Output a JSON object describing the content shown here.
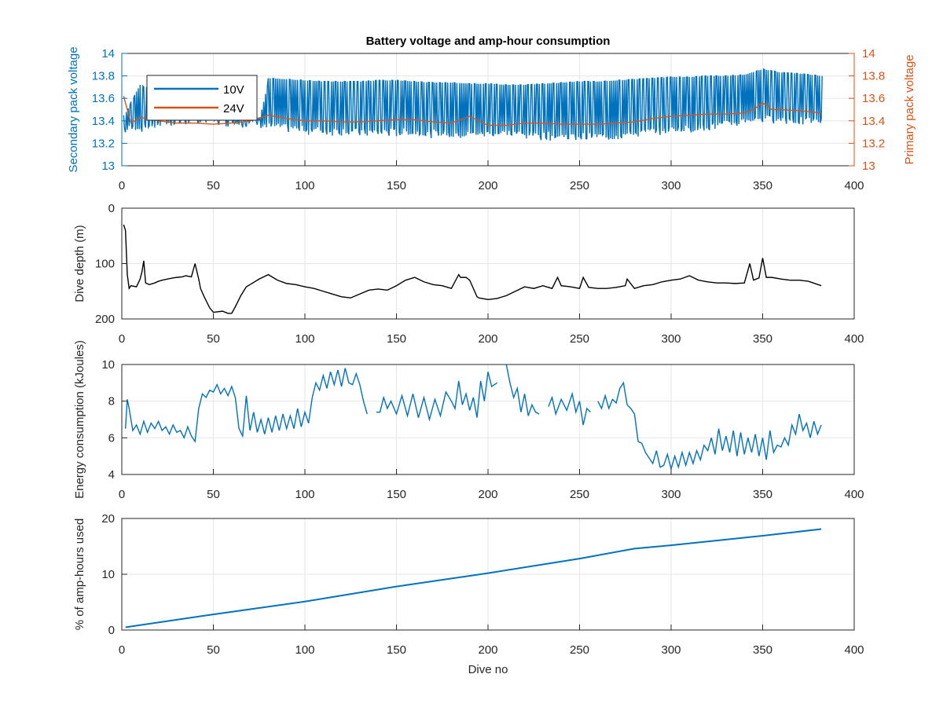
{
  "figure": {
    "title": "Battery voltage and amp-hour consumption"
  },
  "colors": {
    "blue": "#0072BD",
    "orange": "#D95319",
    "black": "#000000",
    "grid": "#e6e6e6",
    "axis": "#262626"
  },
  "chart_data": [
    {
      "type": "line",
      "title": "Battery voltage and amp-hour consumption",
      "xlabel": "",
      "ylabel": "Secondary pack voltage",
      "ylabel_right": "Primary pack voltage",
      "xlim": [
        0,
        400
      ],
      "ylim": [
        13,
        14
      ],
      "ylim_right": [
        13,
        14
      ],
      "xticks": [
        0,
        50,
        100,
        150,
        200,
        250,
        300,
        350,
        400
      ],
      "yticks": [
        13,
        13.2,
        13.4,
        13.6,
        13.8,
        14
      ],
      "yticks_right": [
        13,
        13.2,
        13.4,
        13.6,
        13.8,
        14
      ],
      "grid": true,
      "legend": "top-left",
      "series": [
        {
          "name": "10V",
          "axis": "left",
          "color": "#0072BD",
          "style": "switching",
          "x": [
            1,
            10,
            20,
            30,
            40,
            50,
            60,
            70,
            75,
            80,
            90,
            100,
            110,
            120,
            130,
            140,
            150,
            160,
            170,
            180,
            190,
            200,
            210,
            220,
            230,
            240,
            250,
            260,
            270,
            280,
            290,
            300,
            310,
            320,
            330,
            340,
            350,
            360,
            370,
            382
          ],
          "high": [
            13.45,
            13.72,
            13.62,
            13.52,
            13.5,
            13.45,
            13.44,
            13.42,
            13.43,
            13.78,
            13.77,
            13.76,
            13.75,
            13.75,
            13.75,
            13.76,
            13.76,
            13.75,
            13.74,
            13.74,
            13.73,
            13.73,
            13.72,
            13.72,
            13.73,
            13.74,
            13.75,
            13.75,
            13.76,
            13.77,
            13.78,
            13.79,
            13.79,
            13.8,
            13.8,
            13.81,
            13.86,
            13.83,
            13.82,
            13.8
          ],
          "low": [
            13.3,
            13.32,
            13.35,
            13.37,
            13.38,
            13.38,
            13.37,
            13.36,
            13.36,
            13.33,
            13.32,
            13.3,
            13.29,
            13.29,
            13.28,
            13.28,
            13.28,
            13.27,
            13.27,
            13.26,
            13.26,
            13.27,
            13.27,
            13.26,
            13.25,
            13.24,
            13.24,
            13.24,
            13.25,
            13.27,
            13.29,
            13.3,
            13.31,
            13.33,
            13.35,
            13.38,
            13.4,
            13.4,
            13.38,
            13.37
          ]
        },
        {
          "name": "24V",
          "axis": "right",
          "color": "#D95319",
          "style": "line",
          "x": [
            1,
            5,
            10,
            20,
            30,
            40,
            50,
            60,
            70,
            80,
            90,
            100,
            110,
            120,
            130,
            140,
            150,
            160,
            170,
            180,
            190,
            200,
            210,
            220,
            230,
            240,
            250,
            260,
            270,
            280,
            290,
            300,
            310,
            320,
            330,
            340,
            345,
            350,
            355,
            360,
            370,
            382
          ],
          "y": [
            13.62,
            13.38,
            13.43,
            13.4,
            13.38,
            13.38,
            13.37,
            13.38,
            13.4,
            13.45,
            13.42,
            13.4,
            13.4,
            13.39,
            13.39,
            13.4,
            13.41,
            13.41,
            13.39,
            13.38,
            13.44,
            13.36,
            13.36,
            13.38,
            13.38,
            13.37,
            13.37,
            13.37,
            13.38,
            13.39,
            13.42,
            13.44,
            13.45,
            13.46,
            13.46,
            13.47,
            13.5,
            13.56,
            13.5,
            13.5,
            13.49,
            13.47
          ]
        }
      ]
    },
    {
      "type": "line",
      "title": "",
      "xlabel": "",
      "ylabel": "Dive depth (m)",
      "xlim": [
        0,
        400
      ],
      "ylim": [
        0,
        200
      ],
      "y_reversed": true,
      "xticks": [
        0,
        50,
        100,
        150,
        200,
        250,
        300,
        350,
        400
      ],
      "yticks": [
        0,
        100,
        200
      ],
      "grid": true,
      "series": [
        {
          "name": "",
          "color": "#000000",
          "x": [
            1,
            2,
            3,
            4,
            5,
            8,
            10,
            11,
            12,
            13,
            15,
            18,
            20,
            22,
            25,
            28,
            30,
            33,
            35,
            38,
            40,
            42,
            43,
            45,
            48,
            50,
            55,
            58,
            60,
            62,
            65,
            68,
            70,
            75,
            80,
            85,
            90,
            95,
            100,
            105,
            110,
            115,
            120,
            125,
            130,
            135,
            140,
            145,
            150,
            155,
            160,
            165,
            170,
            175,
            180,
            184,
            185,
            188,
            190,
            194,
            195,
            200,
            205,
            210,
            215,
            220,
            225,
            230,
            235,
            238,
            240,
            245,
            250,
            252,
            255,
            260,
            265,
            270,
            275,
            276,
            280,
            285,
            290,
            295,
            300,
            305,
            310,
            315,
            320,
            325,
            330,
            335,
            340,
            343,
            345,
            348,
            350,
            352,
            355,
            360,
            365,
            370,
            375,
            382
          ],
          "y": [
            30,
            40,
            120,
            145,
            140,
            142,
            128,
            115,
            95,
            135,
            138,
            135,
            132,
            130,
            128,
            126,
            125,
            124,
            122,
            124,
            100,
            128,
            145,
            160,
            180,
            188,
            186,
            190,
            190,
            178,
            158,
            142,
            138,
            128,
            120,
            130,
            136,
            138,
            142,
            145,
            150,
            155,
            160,
            162,
            155,
            148,
            146,
            148,
            140,
            130,
            125,
            133,
            138,
            140,
            145,
            120,
            125,
            125,
            130,
            160,
            162,
            165,
            163,
            158,
            150,
            142,
            145,
            140,
            145,
            125,
            140,
            142,
            145,
            125,
            143,
            145,
            145,
            143,
            140,
            128,
            145,
            140,
            138,
            133,
            130,
            128,
            122,
            130,
            133,
            135,
            135,
            136,
            135,
            100,
            130,
            126,
            90,
            125,
            125,
            128,
            130,
            130,
            132,
            140
          ]
        }
      ]
    },
    {
      "type": "line",
      "title": "",
      "xlabel": "",
      "ylabel": "Energy consumption (kJoules)",
      "xlim": [
        0,
        400
      ],
      "ylim": [
        4,
        10
      ],
      "xticks": [
        0,
        50,
        100,
        150,
        200,
        250,
        300,
        350,
        400
      ],
      "yticks": [
        4,
        6,
        8,
        10
      ],
      "grid": true,
      "series": [
        {
          "name": "",
          "color": "#0072BD",
          "segments": [
            {
              "x": [
                2,
                3,
                4,
                6,
                8,
                10,
                12,
                14,
                16,
                18,
                20,
                22,
                24,
                26,
                28,
                30,
                32,
                34,
                36,
                38,
                40,
                42,
                44,
                46,
                48,
                50,
                52,
                54,
                56,
                58,
                60,
                62,
                64,
                66,
                68,
                70,
                72,
                74,
                76,
                78,
                80,
                82,
                84,
                86,
                88,
                90,
                92,
                94,
                96,
                98,
                100,
                102,
                104,
                106,
                108,
                110,
                112,
                114,
                116,
                118,
                120,
                122,
                124,
                126,
                128,
                130,
                132,
                134
              ],
              "y": [
                6.5,
                8.1,
                7.6,
                6.4,
                6.7,
                6.2,
                6.9,
                6.3,
                6.8,
                6.5,
                6.9,
                6.4,
                6.6,
                6.2,
                6.7,
                6.3,
                6.4,
                6.0,
                6.6,
                6.1,
                5.8,
                7.6,
                8.4,
                8.2,
                8.6,
                8.5,
                8.9,
                8.4,
                8.7,
                8.3,
                8.8,
                8.2,
                6.5,
                6.1,
                8.3,
                6.4,
                7.4,
                6.3,
                7.0,
                6.2,
                7.1,
                6.3,
                7.2,
                6.4,
                7.3,
                6.5,
                7.2,
                6.5,
                7.6,
                6.6,
                7.4,
                6.8,
                8.2,
                9.0,
                8.6,
                9.4,
                8.7,
                9.6,
                8.9,
                9.7,
                8.8,
                9.8,
                9.0,
                8.9,
                9.5,
                8.9,
                8.0,
                7.3
              ]
            },
            {
              "x": [
                139,
                141,
                143,
                145,
                147,
                150,
                153,
                156,
                159,
                162,
                165,
                168,
                171,
                174,
                177,
                180,
                182,
                184,
                186,
                188,
                190,
                192,
                194,
                196,
                198,
                200,
                202,
                205
              ],
              "y": [
                7.4,
                7.4,
                8.2,
                7.6,
                8.0,
                7.3,
                8.3,
                7.2,
                8.4,
                7.1,
                8.2,
                7.0,
                8.1,
                7.2,
                8.5,
                8.0,
                7.6,
                9.1,
                7.8,
                8.4,
                7.5,
                8.2,
                7.1,
                9.1,
                8.0,
                9.6,
                8.8,
                9.0
              ]
            },
            {
              "x": [
                210,
                212,
                214,
                216,
                218,
                220,
                222,
                224,
                226,
                228
              ],
              "y": [
                10.0,
                9.0,
                8.2,
                8.7,
                7.4,
                8.4,
                7.2,
                7.8,
                7.4,
                7.3
              ]
            },
            {
              "x": [
                233,
                235,
                237,
                240,
                243,
                246,
                248,
                250,
                252,
                254,
                256
              ],
              "y": [
                7.7,
                8.2,
                7.3,
                8.1,
                7.5,
                8.4,
                7.4,
                8.0,
                6.7,
                7.6,
                7.4
              ]
            },
            {
              "x": [
                260,
                262,
                264,
                266,
                268,
                270,
                272,
                274,
                276,
                278,
                280,
                282,
                284,
                286,
                288,
                290,
                292,
                294,
                296,
                298,
                300,
                302,
                304,
                306,
                308,
                310,
                312,
                314,
                316,
                318,
                320,
                322,
                324,
                326,
                328,
                330,
                332,
                334,
                336,
                338,
                340,
                342,
                344,
                346,
                348,
                350,
                352,
                354,
                356,
                358,
                360,
                362,
                364,
                366,
                368,
                370,
                372,
                374,
                376,
                378,
                380,
                382
              ],
              "y": [
                8.0,
                7.6,
                8.3,
                7.6,
                8.1,
                7.9,
                8.7,
                9.0,
                7.8,
                7.6,
                7.3,
                5.8,
                5.7,
                5.2,
                4.9,
                4.6,
                5.3,
                4.4,
                4.5,
                5.1,
                4.3,
                5.0,
                4.4,
                5.2,
                4.5,
                5.2,
                4.6,
                5.3,
                4.8,
                5.6,
                5.3,
                6.0,
                5.1,
                6.5,
                5.3,
                6.1,
                5.2,
                6.4,
                5.0,
                6.3,
                5.1,
                6.0,
                5.2,
                6.2,
                5.0,
                6.0,
                4.8,
                6.4,
                5.2,
                5.6,
                5.5,
                6.0,
                5.6,
                6.7,
                6.2,
                7.3,
                6.4,
                6.8,
                6.0,
                6.9,
                6.2,
                6.7
              ]
            }
          ]
        }
      ]
    },
    {
      "type": "line",
      "title": "",
      "xlabel": "Dive no",
      "ylabel": "% of amp-hours used",
      "xlim": [
        0,
        400
      ],
      "ylim": [
        0,
        20
      ],
      "xticks": [
        0,
        50,
        100,
        150,
        200,
        250,
        300,
        350,
        400
      ],
      "yticks": [
        0,
        10,
        20
      ],
      "grid": true,
      "series": [
        {
          "name": "",
          "color": "#0072BD",
          "x": [
            2,
            50,
            100,
            150,
            200,
            250,
            280,
            300,
            350,
            382
          ],
          "y": [
            0.5,
            2.8,
            5.1,
            7.8,
            10.2,
            12.8,
            14.6,
            15.2,
            16.9,
            18.1
          ]
        }
      ]
    }
  ]
}
